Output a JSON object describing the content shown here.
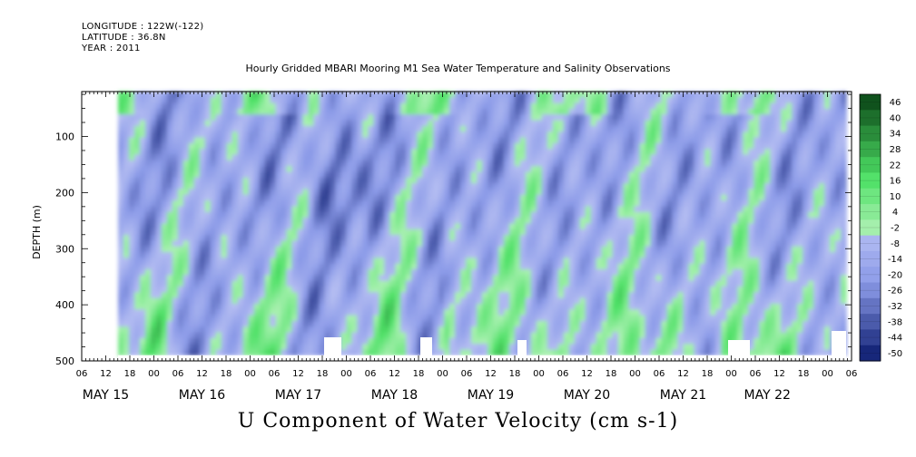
{
  "header": {
    "longitude": "LONGITUDE : 122W(-122)",
    "latitude": "LATITUDE : 36.8N",
    "year": "YEAR : 2011"
  },
  "chart_data": {
    "type": "heatmap",
    "title": "Hourly Gridded MBARI Mooring M1 Sea Water Temperature and Salinity Observations",
    "xlabel": "",
    "ylabel": "DEPTH (m)",
    "colorbar_label": "U Component of Water Velocity (cm s-1)",
    "x_hour_ticks": [
      "06",
      "12",
      "18",
      "00",
      "06",
      "12",
      "18",
      "00",
      "06",
      "12",
      "18",
      "00",
      "06",
      "12",
      "18",
      "00",
      "06",
      "12",
      "18",
      "00",
      "06",
      "12",
      "18",
      "00",
      "06",
      "12",
      "18",
      "00",
      "06",
      "12",
      "18",
      "00",
      "06"
    ],
    "x_day_labels": [
      "MAY 15",
      "MAY 16",
      "MAY 17",
      "MAY 18",
      "MAY 19",
      "MAY 20",
      "MAY 21",
      "MAY 22"
    ],
    "y_ticks": [
      "100",
      "200",
      "300",
      "400",
      "500"
    ],
    "ylim": [
      500,
      20
    ],
    "data_depth_range": [
      20,
      490
    ],
    "colorbar_levels": [
      "46",
      "40",
      "34",
      "28",
      "22",
      "16",
      "10",
      "4",
      "-2",
      "-8",
      "-14",
      "-20",
      "-26",
      "-32",
      "-38",
      "-44",
      "-50"
    ],
    "colors": {
      "strong_negative": "#0a1a6e",
      "moderate_negative": "#8c9be8",
      "near_zero_negative": "#b4bdf2",
      "near_zero_positive": "#a8f0b0",
      "moderate_positive": "#4ee066",
      "strong_positive": "#0e4d1a"
    }
  }
}
